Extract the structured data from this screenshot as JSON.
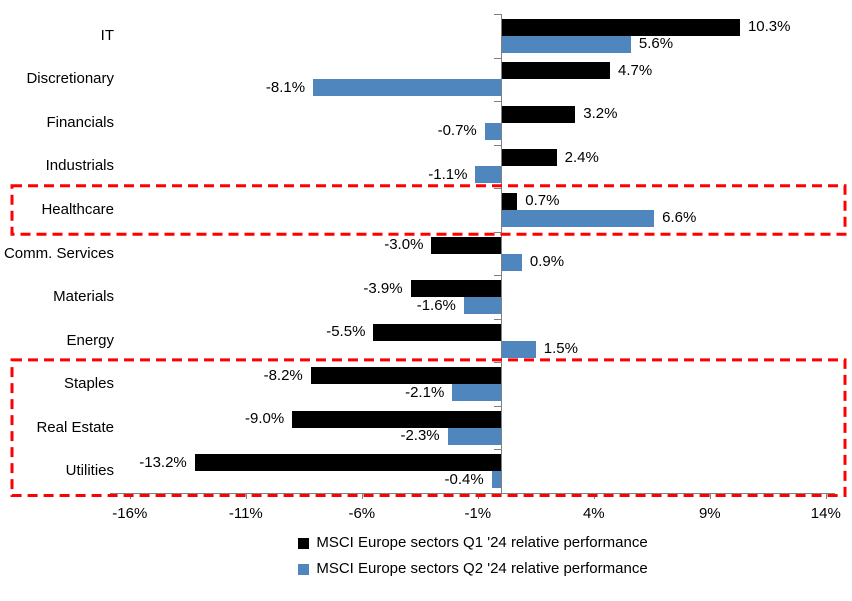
{
  "chart_data": {
    "type": "bar",
    "orientation": "horizontal",
    "title": "",
    "categories": [
      "IT",
      "Discretionary",
      "Financials",
      "Industrials",
      "Healthcare",
      "Comm. Services",
      "Materials",
      "Energy",
      "Staples",
      "Real Estate",
      "Utilities"
    ],
    "series": [
      {
        "name": "MSCI Europe sectors Q1 '24 relative performance",
        "key": "q1",
        "color": "#000000",
        "values": [
          10.3,
          4.7,
          3.2,
          2.4,
          0.7,
          -3.0,
          -3.9,
          -5.5,
          -8.2,
          -9.0,
          -13.2
        ],
        "labels": [
          "10.3%",
          "4.7%",
          "3.2%",
          "2.4%",
          "0.7%",
          "-3.0%",
          "-3.9%",
          "-5.5%",
          "-8.2%",
          "-9.0%",
          "-13.2%"
        ]
      },
      {
        "name": "MSCI Europe sectors Q2 '24 relative performance",
        "key": "q2",
        "color": "#4F86BE",
        "values": [
          5.6,
          -8.1,
          -0.7,
          -1.1,
          6.6,
          0.9,
          -1.6,
          1.5,
          -2.1,
          -2.3,
          -0.4
        ],
        "labels": [
          "5.6%",
          "-8.1%",
          "-0.7%",
          "-1.1%",
          "6.6%",
          "0.9%",
          "-1.6%",
          "1.5%",
          "-2.1%",
          "-2.3%",
          "-0.4%"
        ]
      }
    ],
    "x_axis": {
      "tick_values": [
        -16,
        -11,
        -6,
        -1,
        4,
        9,
        14
      ],
      "tick_labels": [
        "-16%",
        "-11%",
        "-6%",
        "-1%",
        "4%",
        "9%",
        "14%"
      ],
      "range": [
        -16.9,
        14.4
      ],
      "grid": false
    },
    "legend": {
      "position": "bottom"
    },
    "highlights": [
      {
        "name": "healthcare-highlight-box",
        "categories": [
          "Healthcare"
        ],
        "color": "#FF0000",
        "style": "dashed"
      },
      {
        "name": "defensives-highlight-box",
        "categories": [
          "Staples",
          "Real Estate",
          "Utilities"
        ],
        "color": "#FF0000",
        "style": "dashed"
      }
    ],
    "axis_color": "#808080"
  }
}
